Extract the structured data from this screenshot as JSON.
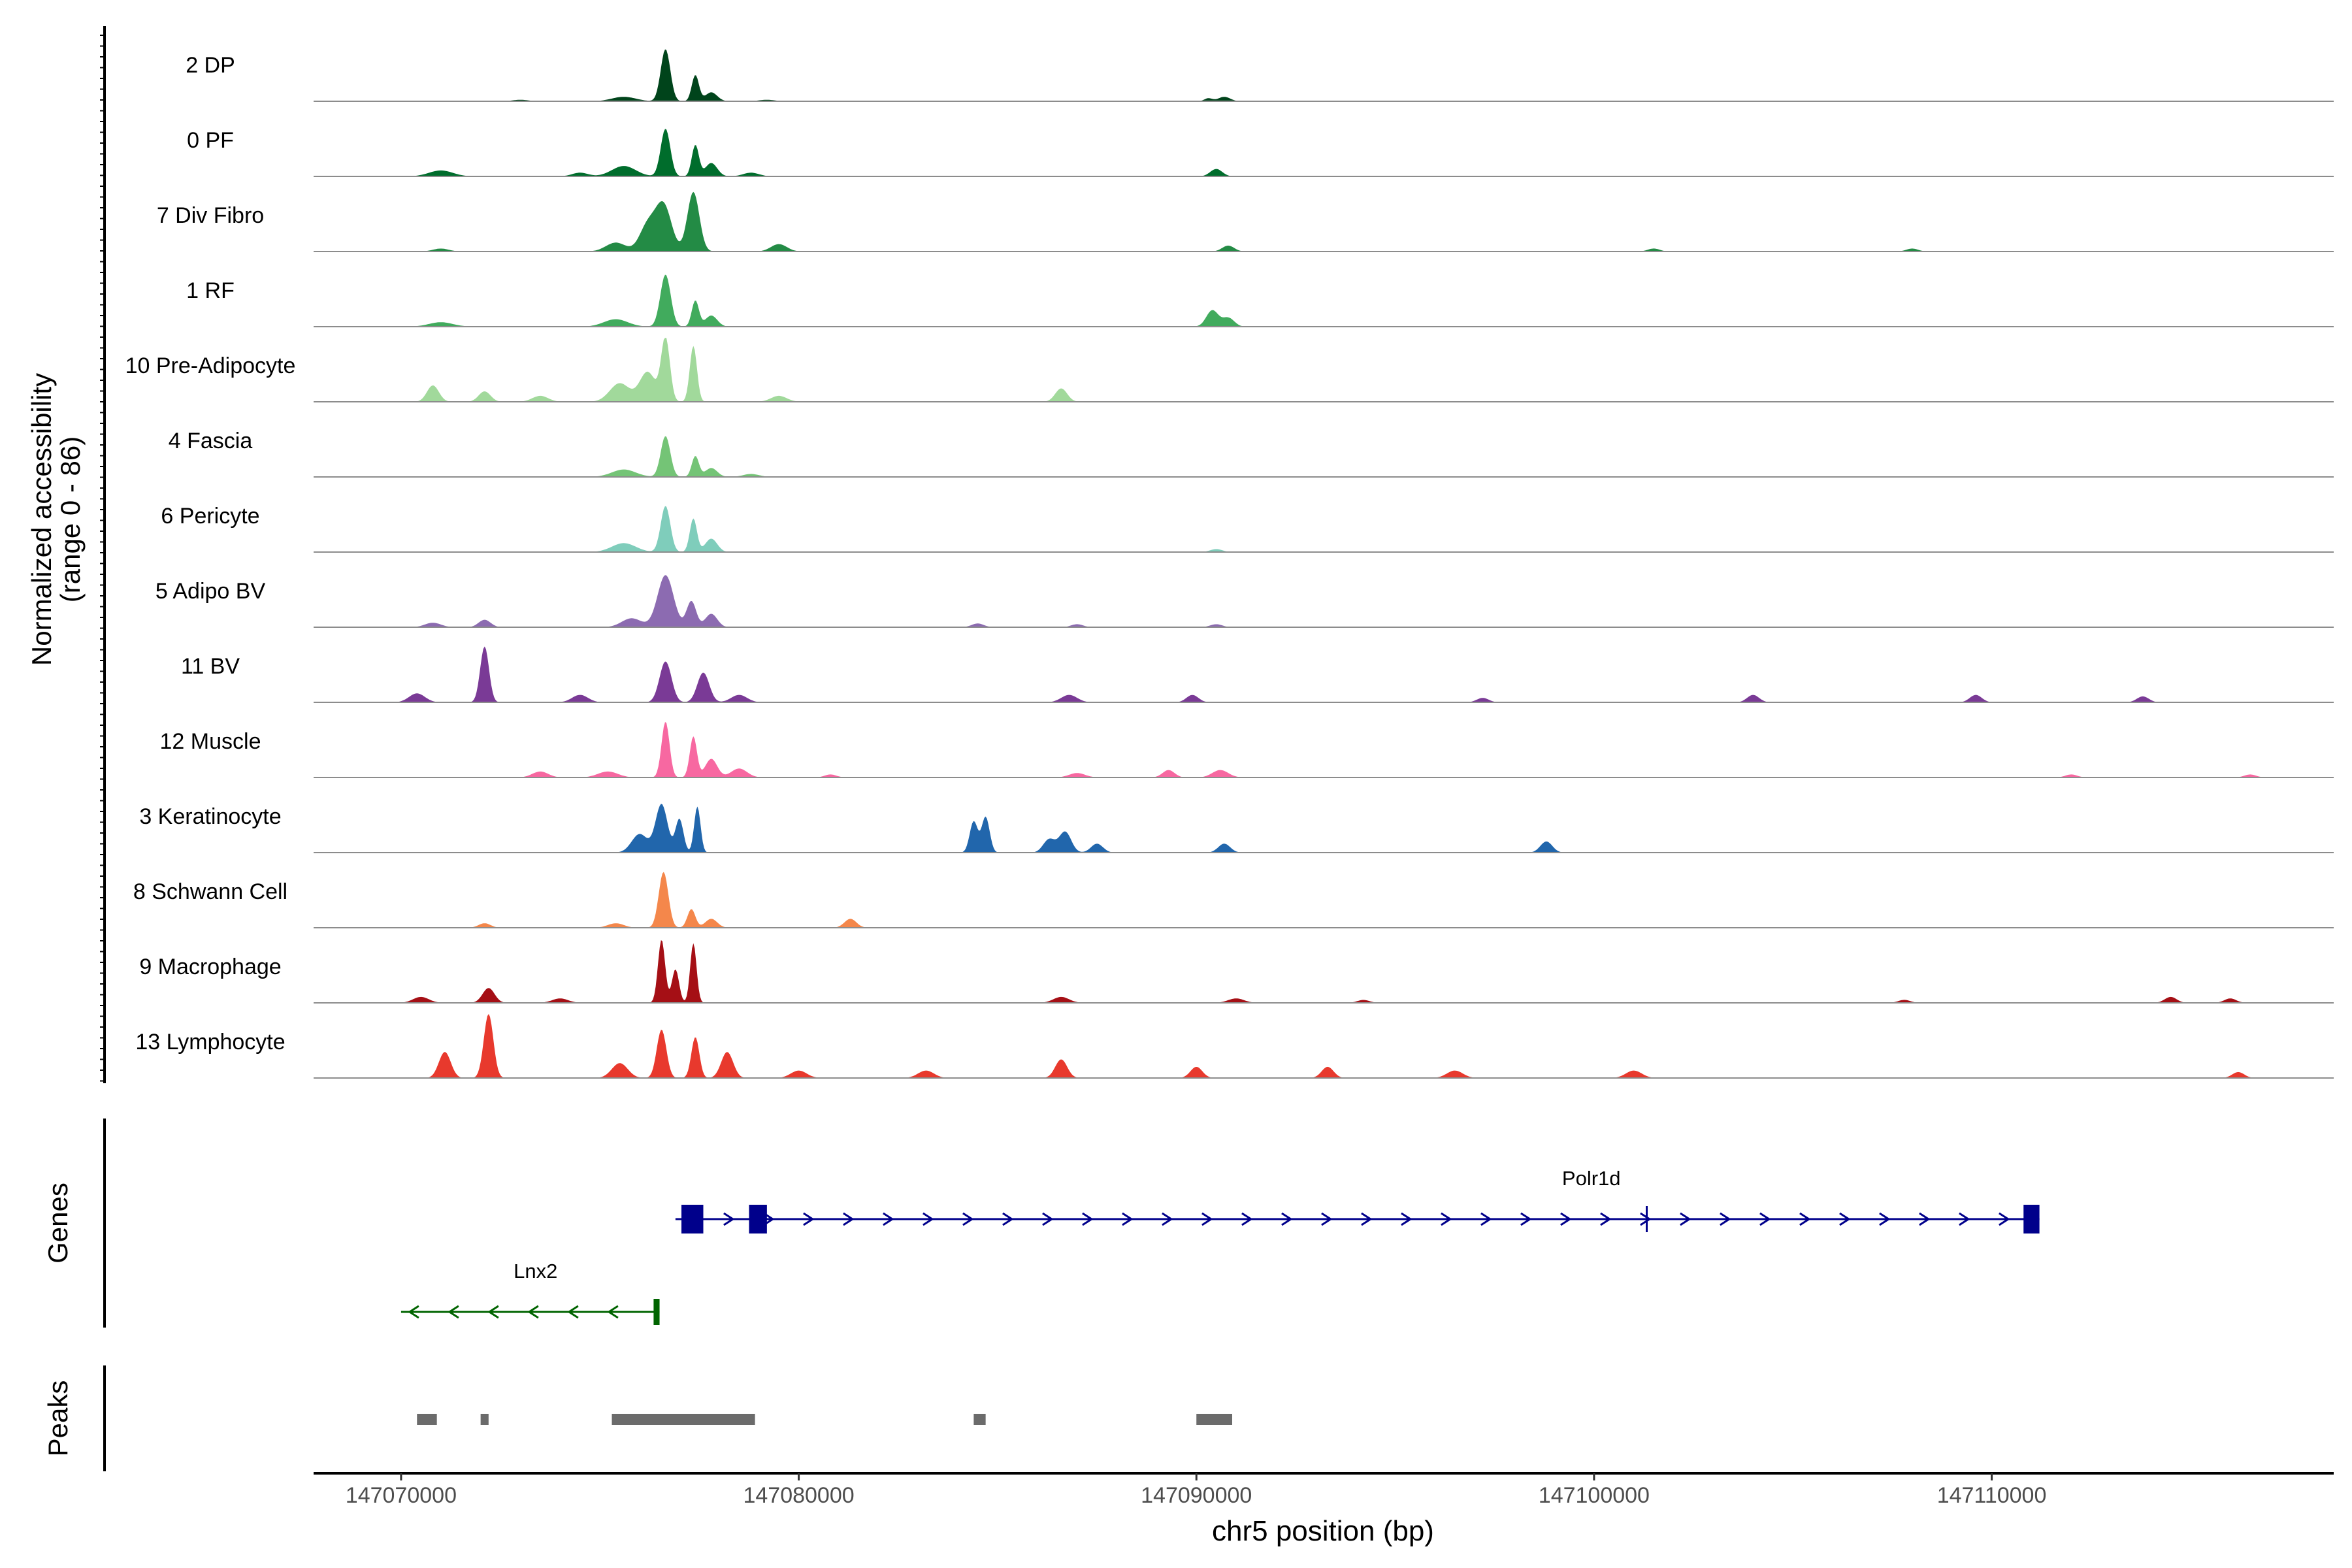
{
  "chart_data": {
    "type": "area",
    "title": "",
    "chromosome": "chr5",
    "xlabel": "chr5 position (bp)",
    "ylabel_line1": "Normalized accessibility",
    "ylabel_line2": "(range 0 - 86)",
    "y_range": [
      0,
      86
    ],
    "x_range": [
      147067800,
      147118600
    ],
    "x_ticks": [
      147070000,
      147080000,
      147090000,
      147100000,
      147110000
    ],
    "x_tick_labels": [
      "147070000",
      "147080000",
      "147090000",
      "147100000",
      "147110000"
    ],
    "tracks": [
      {
        "name": "2 DP",
        "color": "#00441b",
        "peaks": [
          [
            147076650,
            70,
            120
          ],
          [
            147077400,
            35,
            90
          ],
          [
            147077800,
            12,
            150
          ],
          [
            147075600,
            6,
            300
          ],
          [
            147090700,
            6,
            150
          ],
          [
            147090300,
            4,
            100
          ],
          [
            147073000,
            2,
            200
          ],
          [
            147079200,
            2,
            200
          ]
        ]
      },
      {
        "name": "0 PF",
        "color": "#006d2c",
        "peaks": [
          [
            147076650,
            64,
            120
          ],
          [
            147077400,
            42,
            90
          ],
          [
            147077800,
            18,
            150
          ],
          [
            147075600,
            14,
            300
          ],
          [
            147071000,
            8,
            300
          ],
          [
            147090500,
            10,
            150
          ],
          [
            147074500,
            5,
            200
          ],
          [
            147078800,
            5,
            200
          ]
        ]
      },
      {
        "name": "7 Div Fibro",
        "color": "#238b45",
        "peaks": [
          [
            147076600,
            62,
            200
          ],
          [
            147077350,
            80,
            150
          ],
          [
            147076200,
            35,
            200
          ],
          [
            147075400,
            12,
            250
          ],
          [
            147079500,
            10,
            200
          ],
          [
            147090800,
            8,
            150
          ],
          [
            147071000,
            4,
            200
          ],
          [
            147101500,
            4,
            150
          ],
          [
            147108000,
            4,
            150
          ]
        ]
      },
      {
        "name": "1 RF",
        "color": "#41ab5d",
        "peaks": [
          [
            147076650,
            70,
            130
          ],
          [
            147077400,
            35,
            90
          ],
          [
            147077800,
            15,
            150
          ],
          [
            147075400,
            10,
            300
          ],
          [
            147090400,
            22,
            150
          ],
          [
            147090800,
            12,
            150
          ],
          [
            147071000,
            6,
            300
          ]
        ]
      },
      {
        "name": "10 Pre-Adipocyte",
        "color": "#a1d99b",
        "peaks": [
          [
            147076650,
            85,
            110
          ],
          [
            147077350,
            75,
            90
          ],
          [
            147076200,
            40,
            200
          ],
          [
            147075500,
            25,
            250
          ],
          [
            147070800,
            22,
            150
          ],
          [
            147072100,
            14,
            150
          ],
          [
            147086600,
            18,
            150
          ],
          [
            147079500,
            8,
            200
          ],
          [
            147073500,
            8,
            200
          ]
        ]
      },
      {
        "name": "4 Fascia",
        "color": "#74c476",
        "peaks": [
          [
            147076650,
            55,
            120
          ],
          [
            147077400,
            28,
            90
          ],
          [
            147077800,
            12,
            150
          ],
          [
            147075600,
            10,
            300
          ],
          [
            147078800,
            4,
            200
          ]
        ]
      },
      {
        "name": "6 Pericyte",
        "color": "#7fcdbb",
        "peaks": [
          [
            147076650,
            62,
            120
          ],
          [
            147077350,
            45,
            90
          ],
          [
            147077800,
            18,
            150
          ],
          [
            147075600,
            12,
            300
          ],
          [
            147090500,
            4,
            150
          ]
        ]
      },
      {
        "name": "5 Adipo BV",
        "color": "#8c6bb1",
        "peaks": [
          [
            147076650,
            70,
            200
          ],
          [
            147077300,
            35,
            120
          ],
          [
            147077800,
            18,
            150
          ],
          [
            147075800,
            12,
            250
          ],
          [
            147072100,
            10,
            150
          ],
          [
            147070800,
            6,
            200
          ],
          [
            147084500,
            5,
            150
          ],
          [
            147087000,
            4,
            150
          ],
          [
            147090500,
            4,
            150
          ]
        ]
      },
      {
        "name": "11 BV",
        "color": "#7a3a96",
        "peaks": [
          [
            147072100,
            75,
            110
          ],
          [
            147076650,
            55,
            150
          ],
          [
            147077600,
            40,
            150
          ],
          [
            147070400,
            12,
            200
          ],
          [
            147074500,
            10,
            200
          ],
          [
            147078500,
            10,
            200
          ],
          [
            147086800,
            10,
            200
          ],
          [
            147089900,
            10,
            150
          ],
          [
            147097200,
            6,
            150
          ],
          [
            147104000,
            10,
            150
          ],
          [
            147109600,
            10,
            150
          ],
          [
            147113800,
            8,
            150
          ]
        ]
      },
      {
        "name": "12 Muscle",
        "color": "#f768a1",
        "peaks": [
          [
            147076650,
            75,
            100
          ],
          [
            147077350,
            55,
            90
          ],
          [
            147077800,
            25,
            150
          ],
          [
            147078500,
            12,
            200
          ],
          [
            147075200,
            8,
            250
          ],
          [
            147073500,
            8,
            200
          ],
          [
            147089300,
            10,
            150
          ],
          [
            147090600,
            10,
            200
          ],
          [
            147087000,
            6,
            200
          ],
          [
            147080800,
            4,
            150
          ],
          [
            147112000,
            4,
            150
          ],
          [
            147116500,
            4,
            150
          ]
        ]
      },
      {
        "name": "3 Keratinocyte",
        "color": "#2166ac",
        "peaks": [
          [
            147076550,
            65,
            150
          ],
          [
            147077000,
            45,
            100
          ],
          [
            147077450,
            62,
            80
          ],
          [
            147076000,
            25,
            200
          ],
          [
            147084400,
            42,
            100
          ],
          [
            147084700,
            48,
            100
          ],
          [
            147086300,
            18,
            150
          ],
          [
            147086700,
            28,
            150
          ],
          [
            147087500,
            12,
            150
          ],
          [
            147090700,
            12,
            150
          ],
          [
            147098800,
            15,
            150
          ]
        ]
      },
      {
        "name": "8 Schwann Cell",
        "color": "#f4874b",
        "peaks": [
          [
            147076600,
            75,
            120
          ],
          [
            147077300,
            25,
            100
          ],
          [
            147077800,
            12,
            150
          ],
          [
            147081300,
            12,
            150
          ],
          [
            147072100,
            6,
            150
          ],
          [
            147075400,
            6,
            200
          ]
        ]
      },
      {
        "name": "9 Macrophage",
        "color": "#a50f15",
        "peaks": [
          [
            147076550,
            85,
            90
          ],
          [
            147076900,
            45,
            90
          ],
          [
            147077350,
            80,
            80
          ],
          [
            147072200,
            20,
            150
          ],
          [
            147070500,
            8,
            200
          ],
          [
            147074000,
            6,
            200
          ],
          [
            147086600,
            8,
            200
          ],
          [
            147091000,
            6,
            200
          ],
          [
            147114500,
            8,
            150
          ],
          [
            147116000,
            6,
            150
          ],
          [
            147107800,
            4,
            150
          ],
          [
            147094200,
            4,
            150
          ]
        ]
      },
      {
        "name": "13 Lymphocyte",
        "color": "#e8392d",
        "peaks": [
          [
            147072200,
            86,
            120
          ],
          [
            147071100,
            35,
            150
          ],
          [
            147076550,
            65,
            120
          ],
          [
            147077400,
            55,
            100
          ],
          [
            147078200,
            35,
            150
          ],
          [
            147075500,
            20,
            200
          ],
          [
            147080000,
            10,
            200
          ],
          [
            147083200,
            10,
            200
          ],
          [
            147086600,
            25,
            150
          ],
          [
            147090000,
            15,
            150
          ],
          [
            147093300,
            15,
            150
          ],
          [
            147096500,
            10,
            200
          ],
          [
            147101000,
            10,
            200
          ],
          [
            147116200,
            8,
            150
          ]
        ]
      }
    ],
    "genes": [
      {
        "name": "Polr1d",
        "strand": "+",
        "start": 147076900,
        "end": 147111200,
        "color": "#00008b",
        "exons": [
          [
            147077050,
            147077600
          ],
          [
            147078750,
            147079200
          ],
          [
            147101300,
            147101340
          ],
          [
            147110800,
            147111200
          ]
        ]
      },
      {
        "name": "Lnx2",
        "strand": "-",
        "start": 147070000,
        "end": 147076500,
        "color": "#006400",
        "exons": [
          [
            147076350,
            147076500
          ]
        ]
      }
    ],
    "peak_regions": [
      [
        147070400,
        147070900
      ],
      [
        147072000,
        147072200
      ],
      [
        147075300,
        147078900
      ],
      [
        147084400,
        147084700
      ],
      [
        147090000,
        147090900
      ]
    ],
    "panel_labels": {
      "genes": "Genes",
      "peaks": "Peaks"
    }
  }
}
